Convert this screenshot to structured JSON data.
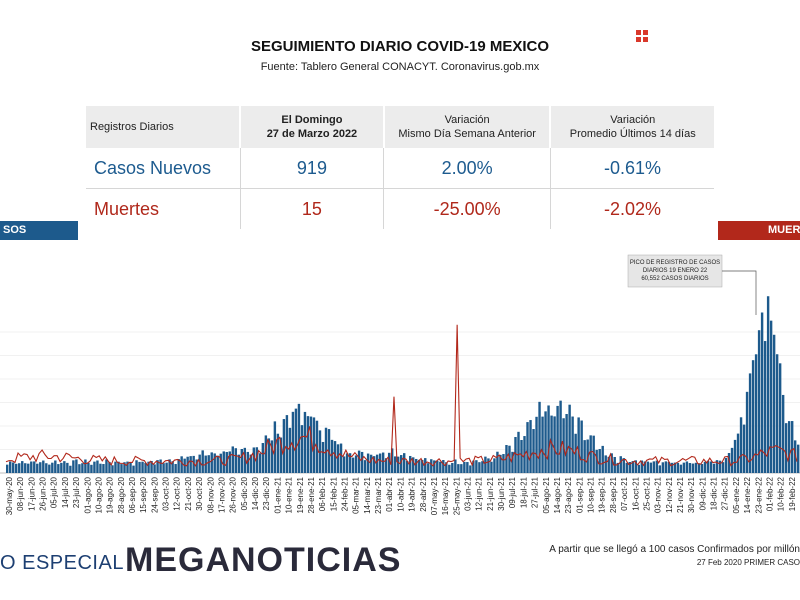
{
  "header": {
    "title": "SEGUIMIENTO DIARIO COVID-19 MEXICO",
    "subtitle": "Fuente: Tablero General CONACYT. Coronavirus.gob.mx"
  },
  "summary": {
    "col_headers": {
      "label": "Registros Diarios",
      "date_line1": "El Domingo",
      "date_line2": "27 de Marzo 2022",
      "var1_line1": "Variación",
      "var1_line2": "Mismo Día Semana Anterior",
      "var2_line1": "Variación",
      "var2_line2": "Promedio Últimos 14 días"
    },
    "rows": [
      {
        "label": "Casos Nuevos",
        "value": "919",
        "var_week": "2.00%",
        "var_14d": "-0.61%",
        "color": "#1d5b8f"
      },
      {
        "label": "Muertes",
        "value": "15",
        "var_week": "-25.00%",
        "var_14d": "-2.02%",
        "color": "#b0281b"
      }
    ]
  },
  "bands": {
    "left": "SOS",
    "right": "MUER"
  },
  "chart_data": {
    "type": "bar",
    "series": [
      {
        "name": "Casos",
        "color": "#1d5a8c"
      },
      {
        "name": "Muertes",
        "color": "#b2281b"
      }
    ],
    "x_tick_labels": [
      "30-may-20",
      "08-jun-20",
      "17-jun-20",
      "26-jun-20",
      "05-jul-20",
      "14-jul-20",
      "23-jul-20",
      "01-ago-20",
      "10-ago-20",
      "19-ago-20",
      "28-ago-20",
      "06-sep-20",
      "15-sep-20",
      "24-sep-20",
      "03-oct-20",
      "12-oct-20",
      "21-oct-20",
      "30-oct-20",
      "08-nov-20",
      "17-nov-20",
      "26-nov-20",
      "05-dic-20",
      "14-dic-20",
      "23-dic-20",
      "01-ene-21",
      "10-ene-21",
      "19-ene-21",
      "28-ene-21",
      "06-feb-21",
      "15-feb-21",
      "24-feb-21",
      "05-mar-21",
      "14-mar-21",
      "23-mar-21",
      "01-abr-21",
      "10-abr-21",
      "19-abr-21",
      "28-abr-21",
      "07-may-21",
      "16-may-21",
      "25-may-21",
      "03-jun-21",
      "12-jun-21",
      "21-jun-21",
      "30-jun-21",
      "09-jul-21",
      "18-jul-21",
      "27-jul-21",
      "05-ago-21",
      "14-ago-21",
      "23-ago-21",
      "01-sep-21",
      "10-sep-21",
      "19-sep-21",
      "28-sep-21",
      "07-oct-21",
      "16-oct-21",
      "25-oct-21",
      "03-nov-21",
      "12-nov-21",
      "21-nov-21",
      "30-nov-21",
      "09-dic-21",
      "18-dic-21",
      "27-dic-21",
      "05-ene-22",
      "14-ene-22",
      "23-ene-22",
      "01-feb-22",
      "10-feb-22",
      "19-feb-22"
    ],
    "annotation": {
      "lines": [
        "PICO DE REGISTRO DE CASOS",
        "DIARIOS 19 ENERO 22",
        "60,552 CASOS DIARIOS"
      ]
    },
    "grid": true
  },
  "footer": {
    "especial": "O ESPECIAL",
    "logo": "MEGANOTICIAS",
    "note1": "A partir que se llegó a 100 casos Confirmados por millón",
    "note2": "27 Feb 2020 PRIMER CASO"
  }
}
